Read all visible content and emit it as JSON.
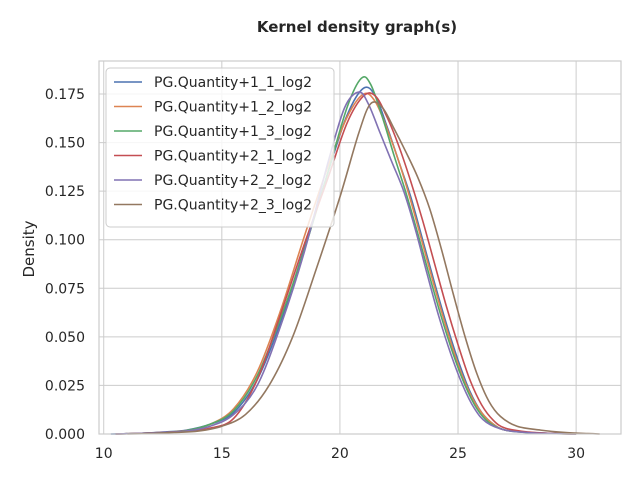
{
  "chart_data": {
    "type": "line",
    "title": "Kernel density graph(s)",
    "xlabel": "",
    "ylabel": "Density",
    "xlim": [
      9.8,
      31.9
    ],
    "ylim": [
      0,
      0.192
    ],
    "xticks": [
      10,
      15,
      20,
      25,
      30
    ],
    "yticks": [
      0.0,
      0.025,
      0.05,
      0.075,
      0.1,
      0.125,
      0.15,
      0.175
    ],
    "ytick_labels": [
      "0.000",
      "0.025",
      "0.050",
      "0.075",
      "0.100",
      "0.125",
      "0.150",
      "0.175"
    ],
    "grid": true,
    "legend_position": "top-left",
    "series": [
      {
        "name": "PG.Quantity+1_1_log2",
        "color": "#4c72b0",
        "points": [
          [
            10.3,
            0.0
          ],
          [
            11.5,
            0.0003
          ],
          [
            12.5,
            0.001
          ],
          [
            13.5,
            0.002
          ],
          [
            14.5,
            0.005
          ],
          [
            15.5,
            0.011
          ],
          [
            16.5,
            0.028
          ],
          [
            17.5,
            0.058
          ],
          [
            18.5,
            0.096
          ],
          [
            19.5,
            0.135
          ],
          [
            20.3,
            0.164
          ],
          [
            21.0,
            0.178
          ],
          [
            21.5,
            0.174
          ],
          [
            22.0,
            0.158
          ],
          [
            22.5,
            0.14
          ],
          [
            23.0,
            0.122
          ],
          [
            23.5,
            0.1
          ],
          [
            24.0,
            0.078
          ],
          [
            24.5,
            0.057
          ],
          [
            25.0,
            0.038
          ],
          [
            25.5,
            0.022
          ],
          [
            26.0,
            0.011
          ],
          [
            26.5,
            0.005
          ],
          [
            27.0,
            0.002
          ],
          [
            28.0,
            0.0008
          ],
          [
            29.0,
            0.0003
          ],
          [
            30.0,
            0.0
          ]
        ]
      },
      {
        "name": "PG.Quantity+1_2_log2",
        "color": "#dd8452",
        "points": [
          [
            10.5,
            0.0
          ],
          [
            11.5,
            0.0003
          ],
          [
            12.5,
            0.0008
          ],
          [
            13.5,
            0.0018
          ],
          [
            14.5,
            0.005
          ],
          [
            15.5,
            0.013
          ],
          [
            16.5,
            0.032
          ],
          [
            17.5,
            0.064
          ],
          [
            18.5,
            0.102
          ],
          [
            19.5,
            0.138
          ],
          [
            20.3,
            0.163
          ],
          [
            21.0,
            0.175
          ],
          [
            21.5,
            0.171
          ],
          [
            22.0,
            0.157
          ],
          [
            22.5,
            0.14
          ],
          [
            23.0,
            0.12
          ],
          [
            23.5,
            0.098
          ],
          [
            24.0,
            0.076
          ],
          [
            24.5,
            0.055
          ],
          [
            25.0,
            0.036
          ],
          [
            25.5,
            0.021
          ],
          [
            26.0,
            0.011
          ],
          [
            26.5,
            0.005
          ],
          [
            27.0,
            0.002
          ],
          [
            28.0,
            0.0008
          ],
          [
            29.0,
            0.0003
          ],
          [
            30.0,
            0.0
          ]
        ]
      },
      {
        "name": "PG.Quantity+1_3_log2",
        "color": "#55a868",
        "points": [
          [
            10.5,
            0.0
          ],
          [
            11.5,
            0.0003
          ],
          [
            12.5,
            0.0008
          ],
          [
            13.5,
            0.0018
          ],
          [
            14.5,
            0.005
          ],
          [
            15.5,
            0.012
          ],
          [
            16.5,
            0.03
          ],
          [
            17.5,
            0.06
          ],
          [
            18.5,
            0.095
          ],
          [
            19.5,
            0.135
          ],
          [
            20.3,
            0.168
          ],
          [
            20.9,
            0.183
          ],
          [
            21.3,
            0.18
          ],
          [
            21.8,
            0.163
          ],
          [
            22.3,
            0.143
          ],
          [
            22.8,
            0.124
          ],
          [
            23.3,
            0.103
          ],
          [
            23.8,
            0.081
          ],
          [
            24.3,
            0.06
          ],
          [
            24.8,
            0.041
          ],
          [
            25.3,
            0.025
          ],
          [
            25.8,
            0.013
          ],
          [
            26.3,
            0.006
          ],
          [
            27.0,
            0.002
          ],
          [
            28.0,
            0.0007
          ],
          [
            29.0,
            0.0002
          ],
          [
            30.0,
            0.0
          ]
        ]
      },
      {
        "name": "PG.Quantity+2_1_log2",
        "color": "#c44e52",
        "points": [
          [
            10.5,
            0.0
          ],
          [
            11.5,
            0.0003
          ],
          [
            12.5,
            0.0008
          ],
          [
            13.5,
            0.0015
          ],
          [
            14.5,
            0.003
          ],
          [
            15.5,
            0.008
          ],
          [
            16.5,
            0.028
          ],
          [
            17.5,
            0.062
          ],
          [
            18.5,
            0.098
          ],
          [
            19.5,
            0.132
          ],
          [
            20.3,
            0.16
          ],
          [
            21.0,
            0.174
          ],
          [
            21.5,
            0.174
          ],
          [
            22.0,
            0.163
          ],
          [
            22.5,
            0.148
          ],
          [
            23.0,
            0.13
          ],
          [
            23.5,
            0.11
          ],
          [
            24.0,
            0.088
          ],
          [
            24.5,
            0.066
          ],
          [
            25.0,
            0.046
          ],
          [
            25.5,
            0.028
          ],
          [
            26.0,
            0.015
          ],
          [
            26.5,
            0.007
          ],
          [
            27.0,
            0.003
          ],
          [
            28.0,
            0.001
          ],
          [
            29.0,
            0.0003
          ],
          [
            30.0,
            0.0
          ]
        ]
      },
      {
        "name": "PG.Quantity+2_2_log2",
        "color": "#8172b3",
        "points": [
          [
            10.5,
            0.0
          ],
          [
            11.5,
            0.0003
          ],
          [
            12.5,
            0.0008
          ],
          [
            13.5,
            0.0015
          ],
          [
            14.5,
            0.004
          ],
          [
            15.5,
            0.01
          ],
          [
            16.5,
            0.025
          ],
          [
            17.5,
            0.056
          ],
          [
            18.5,
            0.094
          ],
          [
            19.5,
            0.14
          ],
          [
            20.2,
            0.168
          ],
          [
            20.8,
            0.176
          ],
          [
            21.2,
            0.17
          ],
          [
            21.7,
            0.155
          ],
          [
            22.2,
            0.14
          ],
          [
            22.7,
            0.125
          ],
          [
            23.2,
            0.105
          ],
          [
            23.7,
            0.082
          ],
          [
            24.2,
            0.06
          ],
          [
            24.7,
            0.041
          ],
          [
            25.2,
            0.025
          ],
          [
            25.7,
            0.013
          ],
          [
            26.2,
            0.006
          ],
          [
            27.0,
            0.002
          ],
          [
            28.0,
            0.0007
          ],
          [
            29.0,
            0.0002
          ],
          [
            30.0,
            0.0
          ]
        ]
      },
      {
        "name": "PG.Quantity+2_3_log2",
        "color": "#937860",
        "points": [
          [
            11.0,
            0.0
          ],
          [
            12.0,
            0.0003
          ],
          [
            13.0,
            0.0008
          ],
          [
            14.0,
            0.0015
          ],
          [
            15.0,
            0.004
          ],
          [
            16.0,
            0.01
          ],
          [
            17.0,
            0.025
          ],
          [
            18.0,
            0.05
          ],
          [
            19.0,
            0.085
          ],
          [
            20.0,
            0.122
          ],
          [
            20.8,
            0.155
          ],
          [
            21.3,
            0.17
          ],
          [
            21.8,
            0.168
          ],
          [
            22.3,
            0.157
          ],
          [
            22.8,
            0.145
          ],
          [
            23.3,
            0.132
          ],
          [
            23.8,
            0.116
          ],
          [
            24.3,
            0.095
          ],
          [
            24.8,
            0.072
          ],
          [
            25.3,
            0.05
          ],
          [
            25.8,
            0.031
          ],
          [
            26.3,
            0.017
          ],
          [
            26.8,
            0.009
          ],
          [
            27.5,
            0.004
          ],
          [
            28.5,
            0.002
          ],
          [
            29.5,
            0.0008
          ],
          [
            30.5,
            0.0002
          ],
          [
            31.0,
            0.0
          ]
        ]
      }
    ]
  }
}
